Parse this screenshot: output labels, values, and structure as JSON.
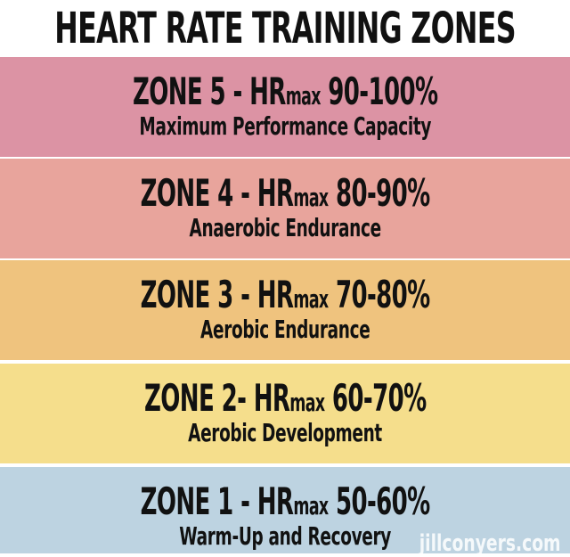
{
  "title": "HEART RATE TRAINING ZONES",
  "zones": [
    {
      "prefix": "ZONE 5 - HR",
      "max": "max",
      "range": "90-100%",
      "description": "Maximum Performance Capacity",
      "color": "#dc93a4"
    },
    {
      "prefix": "ZONE 4 - HR",
      "max": "max",
      "range": "80-90%",
      "description": "Anaerobic Endurance",
      "color": "#e8a49c"
    },
    {
      "prefix": "ZONE 3 - HR",
      "max": "max",
      "range": "70-80%",
      "description": "Aerobic Endurance",
      "color": "#efc37e"
    },
    {
      "prefix": "ZONE 2- HR",
      "max": "max",
      "range": "60-70%",
      "description": "Aerobic Development",
      "color": "#f5de8c"
    },
    {
      "prefix": "ZONE 1 - HR",
      "max": "max",
      "range": "50-60%",
      "description": "Warm-Up and Recovery",
      "color": "#bdd3e1"
    }
  ],
  "watermark": "jillconyers.com"
}
